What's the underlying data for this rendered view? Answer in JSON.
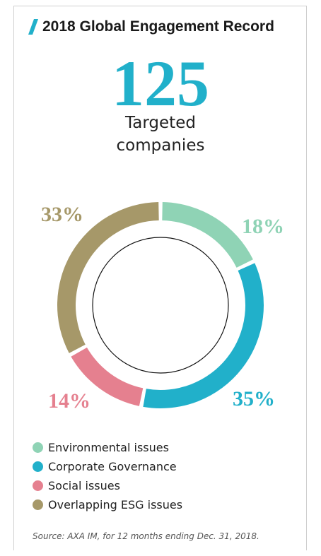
{
  "header": {
    "title": "2018 Global Engagement Record",
    "accent_color": "#21b0ca"
  },
  "headline": {
    "value": "125",
    "label_line1": "Targeted",
    "label_line2": "companies"
  },
  "chart_data": {
    "type": "pie",
    "categories": [
      "Environmental issues",
      "Corporate Governance",
      "Social issues",
      "Overlapping ESG issues"
    ],
    "values": [
      18,
      35,
      14,
      33
    ],
    "labels": [
      "18%",
      "35%",
      "14%",
      "33%"
    ],
    "colors": [
      "#8fd3b5",
      "#21b0ca",
      "#e5808f",
      "#a69869"
    ],
    "legend_position": "bottom-left"
  },
  "source": "Source: AXA IM, for 12 months ending Dec. 31, 2018."
}
